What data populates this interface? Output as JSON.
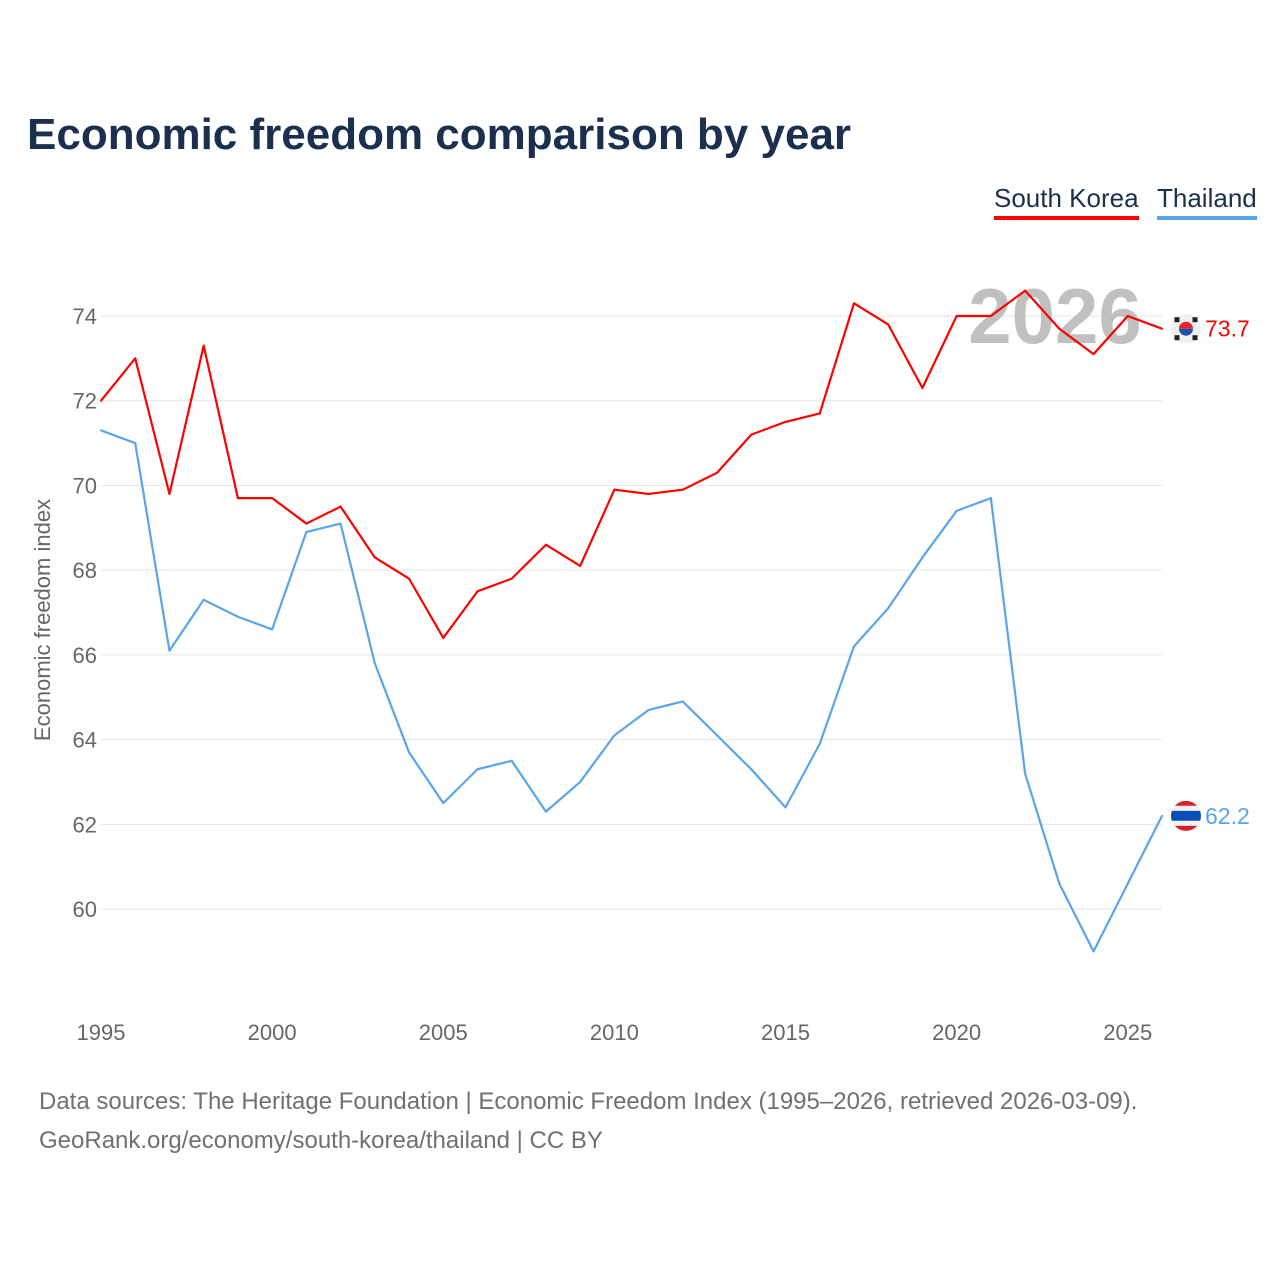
{
  "chart_data": {
    "type": "line",
    "title": "Economic freedom comparison by year",
    "xlabel": "",
    "ylabel": "Economic freedom index",
    "xlim": [
      1995,
      2026
    ],
    "ylim": [
      58,
      75
    ],
    "x_ticks": [
      "1995",
      "2000",
      "2005",
      "2010",
      "2015",
      "2020",
      "2025"
    ],
    "y_ticks": [
      "60",
      "62",
      "64",
      "66",
      "68",
      "70",
      "72",
      "74"
    ],
    "grid": true,
    "legend_position": "top-right",
    "year_watermark": "2026",
    "x": [
      1995,
      1996,
      1997,
      1998,
      1999,
      2000,
      2001,
      2002,
      2003,
      2004,
      2005,
      2006,
      2007,
      2008,
      2009,
      2010,
      2011,
      2012,
      2013,
      2014,
      2015,
      2016,
      2017,
      2018,
      2019,
      2020,
      2021,
      2022,
      2023,
      2024,
      2025,
      2026
    ],
    "series": [
      {
        "name": "South Korea",
        "color": "#ff0000",
        "end_label": "73.7",
        "flag": "south-korea-flag-icon",
        "values": [
          72.0,
          73.0,
          69.8,
          73.3,
          69.7,
          69.7,
          69.1,
          69.5,
          68.3,
          67.8,
          66.4,
          67.5,
          67.8,
          68.6,
          68.1,
          69.9,
          69.8,
          69.9,
          70.3,
          71.2,
          71.5,
          71.7,
          74.3,
          73.8,
          72.3,
          74.0,
          74.0,
          74.6,
          73.7,
          73.1,
          74.0,
          73.7
        ]
      },
      {
        "name": "Thailand",
        "color": "#5aa5ea",
        "end_label": "62.2",
        "flag": "thailand-flag-icon",
        "values": [
          71.3,
          71.0,
          66.1,
          67.3,
          66.9,
          66.6,
          68.9,
          69.1,
          65.8,
          63.7,
          62.5,
          63.3,
          63.5,
          62.3,
          63.0,
          64.1,
          64.7,
          64.9,
          64.1,
          63.3,
          62.4,
          63.9,
          66.2,
          67.1,
          68.3,
          69.4,
          69.7,
          63.2,
          60.6,
          59.0,
          60.6,
          62.2
        ]
      }
    ]
  },
  "footer": {
    "line1": "Data sources: The Heritage Foundation | Economic Freedom Index (1995–2026, retrieved 2026-03-09).",
    "line2": "GeoRank.org/economy/south-korea/thailand | CC BY"
  }
}
